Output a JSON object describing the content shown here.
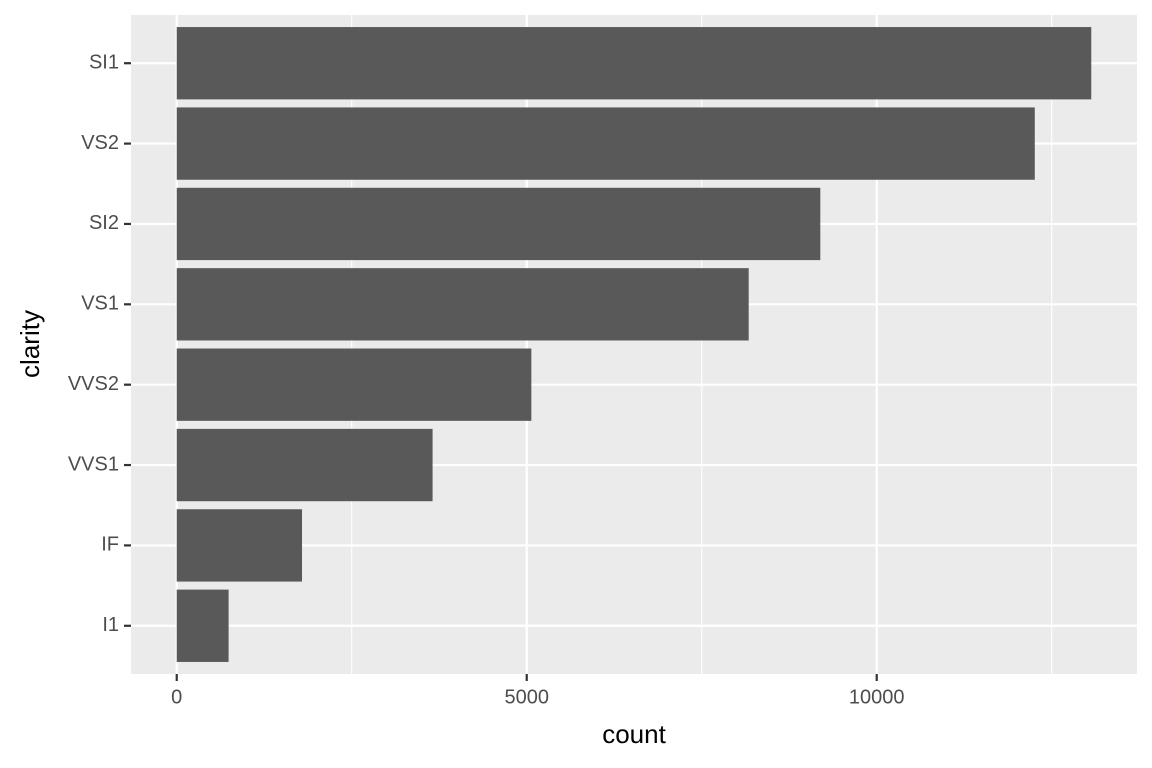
{
  "chart_data": {
    "type": "bar",
    "orientation": "horizontal",
    "x_label": "count",
    "y_label": "clarity",
    "categories": [
      "SI1",
      "VS2",
      "SI2",
      "VS1",
      "VVS2",
      "VVS1",
      "IF",
      "I1"
    ],
    "values": [
      13065,
      12258,
      9194,
      8171,
      5066,
      3655,
      1790,
      741
    ],
    "color": "#595959",
    "xlim": [
      -653.25,
      13718.25
    ],
    "xticks": [
      0,
      5000,
      10000
    ],
    "minor_gridlines": [
      2500,
      7500,
      12500
    ],
    "grid": true
  }
}
